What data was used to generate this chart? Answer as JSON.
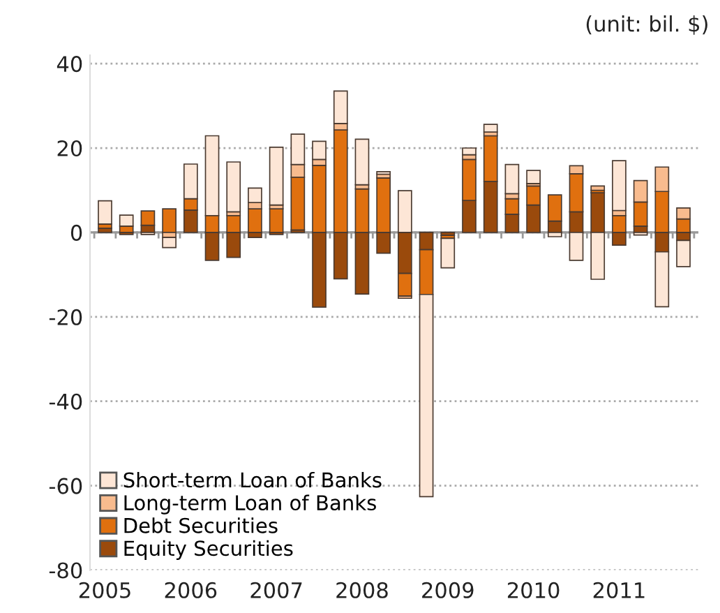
{
  "chart_data": {
    "type": "bar",
    "stacked": true,
    "categories": [
      "2005",
      null,
      null,
      null,
      "2006",
      null,
      null,
      null,
      "2007",
      null,
      null,
      null,
      "2008",
      null,
      null,
      null,
      "2009",
      null,
      null,
      null,
      "2010",
      null,
      null,
      null,
      "2011",
      null,
      null,
      null
    ],
    "series": [
      {
        "name": "Short-term Loan of Banks",
        "color": "#fde6d6",
        "values": [
          5.5,
          2.6,
          -0.5,
          -2.4,
          8.2,
          18.9,
          11.8,
          3.4,
          13.7,
          7.2,
          4.3,
          7.7,
          10.8,
          0.6,
          9.9,
          -47.9,
          -7.0,
          1.6,
          1.8,
          6.9,
          3.1,
          -1.0,
          -6.6,
          -11.1,
          11.8,
          -0.6,
          -13.0,
          -6.2
        ]
      },
      {
        "name": "Long-term Loan of Banks",
        "color": "#f8bb8e",
        "values": [
          null,
          null,
          null,
          -1.2,
          null,
          null,
          0.9,
          1.5,
          0.9,
          3.0,
          1.4,
          1.5,
          1.0,
          0.9,
          -0.5,
          null,
          null,
          1.1,
          0.9,
          1.2,
          0.6,
          null,
          1.9,
          1.0,
          1.2,
          5.1,
          5.8,
          2.6
        ]
      },
      {
        "name": "Debt Securities",
        "color": "#e0700f",
        "values": [
          1.0,
          1.5,
          3.4,
          5.6,
          2.7,
          4.0,
          4.0,
          5.6,
          5.6,
          12.5,
          15.9,
          24.3,
          10.3,
          12.9,
          -5.4,
          -10.6,
          -0.7,
          9.7,
          10.8,
          3.7,
          4.5,
          6.2,
          9.0,
          0.6,
          4.0,
          5.7,
          9.7,
          3.2
        ]
      },
      {
        "name": "Equity Securities",
        "color": "#9a4a0c",
        "values": [
          1.0,
          -0.5,
          1.7,
          null,
          5.3,
          -6.6,
          -5.9,
          -1.2,
          -0.5,
          0.6,
          -17.7,
          -11.0,
          -14.6,
          -4.9,
          -9.7,
          -4.1,
          -0.7,
          7.6,
          12.1,
          4.3,
          6.5,
          2.7,
          4.9,
          9.4,
          -3.0,
          1.5,
          -4.6,
          -1.9
        ]
      }
    ],
    "ylim": [
      -80,
      42
    ],
    "yticks": [
      -80,
      -60,
      -40,
      -20,
      0,
      20,
      40
    ],
    "grid": "y",
    "legend": "bottom left",
    "annotations": [
      "(unit: bil. $)"
    ]
  }
}
